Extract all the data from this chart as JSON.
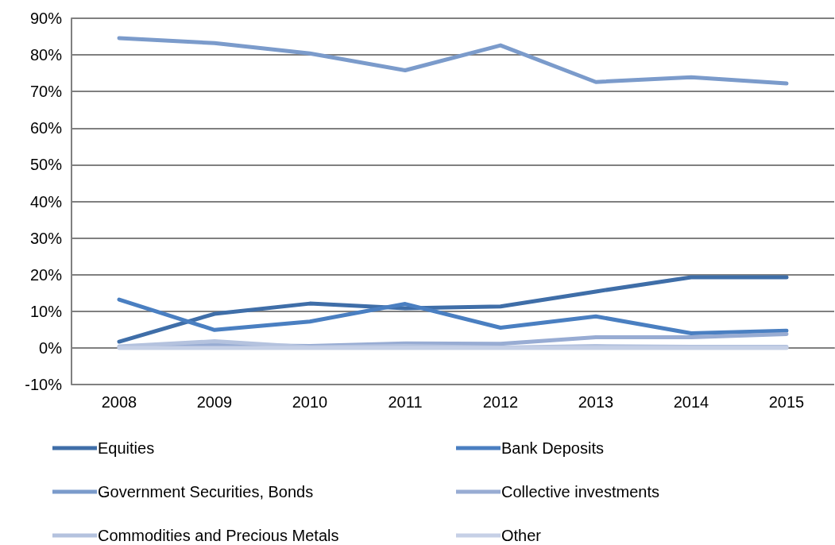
{
  "chart_data": {
    "type": "line",
    "categories": [
      "2008",
      "2009",
      "2010",
      "2011",
      "2012",
      "2013",
      "2014",
      "2015"
    ],
    "series": [
      {
        "name": "Equities",
        "color": "#3f6ea8",
        "values": [
          1.7,
          9.3,
          12.1,
          10.8,
          11.3,
          15.4,
          19.3,
          19.3
        ]
      },
      {
        "name": "Bank Deposits",
        "color": "#4a7fc1",
        "values": [
          13.2,
          4.9,
          7.2,
          12.0,
          5.5,
          8.6,
          4.0,
          4.7
        ]
      },
      {
        "name": "Government Securities, Bonds",
        "color": "#7b9bcb",
        "values": [
          84.6,
          83.2,
          80.4,
          75.8,
          82.6,
          72.6,
          73.9,
          72.2
        ]
      },
      {
        "name": "Collective investments",
        "color": "#98acd3",
        "values": [
          0.2,
          0.8,
          0.5,
          1.2,
          1.1,
          2.9,
          2.9,
          3.8
        ]
      },
      {
        "name": "Commodities and Precious Metals",
        "color": "#b4c2de",
        "values": [
          0.4,
          1.8,
          0.2,
          0.5,
          0.1,
          0.5,
          0.3,
          0.3
        ]
      },
      {
        "name": "Other",
        "color": "#c6d0e6",
        "values": [
          0.0,
          0.0,
          0.0,
          0.0,
          0.0,
          0.0,
          0.0,
          0.0
        ]
      }
    ],
    "ylim": [
      -10,
      90
    ],
    "yticks": [
      {
        "value": -10,
        "label": "-10%"
      },
      {
        "value": 0,
        "label": "0%"
      },
      {
        "value": 10,
        "label": "10%"
      },
      {
        "value": 20,
        "label": "20%"
      },
      {
        "value": 30,
        "label": "30%"
      },
      {
        "value": 40,
        "label": "40%"
      },
      {
        "value": 50,
        "label": "50%"
      },
      {
        "value": 60,
        "label": "60%"
      },
      {
        "value": 70,
        "label": "70%"
      },
      {
        "value": 80,
        "label": "80%"
      },
      {
        "value": 90,
        "label": "90%"
      }
    ],
    "grid": "y",
    "legend": "bottom",
    "marker": "none",
    "line_style": "solid"
  }
}
